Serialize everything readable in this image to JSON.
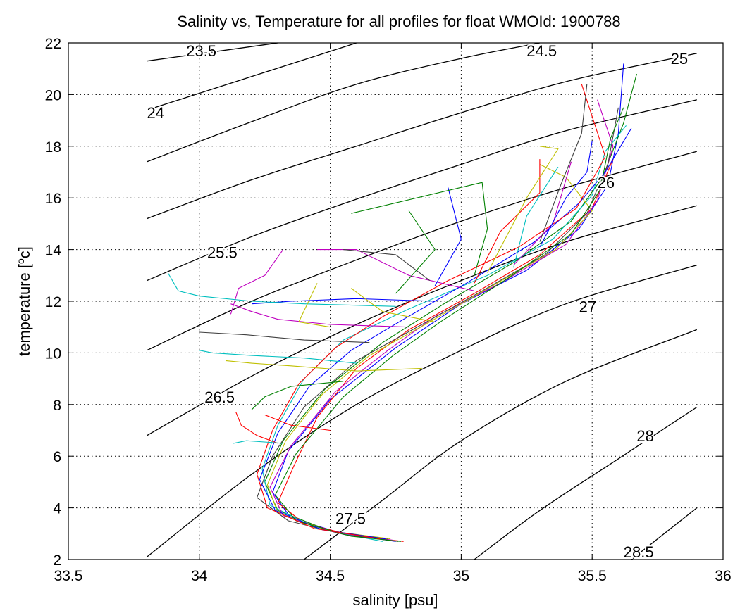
{
  "chart_data": {
    "type": "line",
    "title": "Salinity vs, Temperature for all profiles for float WMOId: 1900788",
    "xlabel": "salinity [psu]",
    "ylabel_main": "temperature [",
    "ylabel_sup": "o",
    "ylabel_end": "c]",
    "xlim": [
      33.5,
      36
    ],
    "ylim": [
      2,
      22
    ],
    "xticks": [
      33.5,
      34,
      34.5,
      35,
      35.5,
      36
    ],
    "xtick_labels": [
      "33.5",
      "34",
      "34.5",
      "35",
      "35.5",
      "36"
    ],
    "yticks": [
      2,
      4,
      6,
      8,
      10,
      12,
      14,
      16,
      18,
      20,
      22
    ],
    "ytick_labels": [
      "2",
      "4",
      "6",
      "8",
      "10",
      "12",
      "14",
      "16",
      "18",
      "20",
      "22"
    ],
    "grid": true,
    "isopycnals": [
      {
        "label": "23.5",
        "points": [
          [
            33.8,
            21.3
          ],
          [
            34.3,
            22.0
          ]
        ],
        "label_at": [
          33.95,
          21.7
        ]
      },
      {
        "label": "24",
        "points": [
          [
            33.8,
            19.4
          ],
          [
            34.6,
            22.0
          ]
        ],
        "label_at": [
          33.8,
          19.3
        ]
      },
      {
        "label": "24.5",
        "points": [
          [
            33.8,
            17.4
          ],
          [
            34.2,
            18.95
          ],
          [
            34.6,
            20.4
          ],
          [
            35.0,
            21.4
          ],
          [
            35.3,
            22.0
          ]
        ],
        "label_at": [
          35.25,
          21.7
        ]
      },
      {
        "label": "25",
        "points": [
          [
            33.8,
            15.2
          ],
          [
            34.2,
            16.7
          ],
          [
            34.6,
            18.0
          ],
          [
            35.0,
            19.3
          ],
          [
            35.4,
            20.5
          ],
          [
            35.9,
            21.6
          ]
        ],
        "label_at": [
          35.8,
          21.4
        ]
      },
      {
        "label": "25.5",
        "points": [
          [
            33.8,
            12.8
          ],
          [
            34.2,
            14.5
          ],
          [
            34.6,
            15.95
          ],
          [
            35.0,
            17.3
          ],
          [
            35.4,
            18.6
          ],
          [
            35.9,
            19.8
          ]
        ],
        "label_at": [
          34.03,
          13.9
        ]
      },
      {
        "label": "26",
        "points": [
          [
            33.8,
            10.1
          ],
          [
            34.2,
            12.0
          ],
          [
            34.6,
            13.6
          ],
          [
            35.0,
            15.1
          ],
          [
            35.4,
            16.4
          ],
          [
            35.9,
            17.8
          ]
        ],
        "label_at": [
          35.52,
          16.6
        ]
      },
      {
        "label": "26.5",
        "points": [
          [
            33.8,
            6.8
          ],
          [
            34.2,
            9.1
          ],
          [
            34.6,
            11.1
          ],
          [
            35.0,
            12.8
          ],
          [
            35.4,
            14.3
          ],
          [
            35.9,
            15.7
          ]
        ],
        "label_at": [
          34.02,
          8.3
        ]
      },
      {
        "label": "27",
        "points": [
          [
            33.8,
            2.1
          ],
          [
            34.2,
            5.3
          ],
          [
            34.6,
            8.0
          ],
          [
            35.0,
            10.1
          ],
          [
            35.4,
            11.9
          ],
          [
            35.9,
            13.4
          ]
        ],
        "label_at": [
          35.45,
          11.8
        ]
      },
      {
        "label": "27.5",
        "points": [
          [
            34.4,
            2.0
          ],
          [
            34.7,
            4.3
          ],
          [
            35.0,
            6.6
          ],
          [
            35.4,
            8.9
          ],
          [
            35.9,
            10.9
          ]
        ],
        "label_at": [
          34.52,
          3.6
        ]
      },
      {
        "label": "28",
        "points": [
          [
            35.05,
            2.0
          ],
          [
            35.3,
            3.9
          ],
          [
            35.6,
            5.9
          ],
          [
            35.9,
            7.9
          ]
        ],
        "label_at": [
          35.67,
          6.8
        ]
      },
      {
        "label": "28.5",
        "points": [
          [
            35.65,
            2.0
          ],
          [
            35.9,
            4.0
          ]
        ],
        "label_at": [
          35.62,
          2.3
        ]
      }
    ],
    "profile_colors": [
      "#0000ff",
      "#008000",
      "#ff0000",
      "#00bfbf",
      "#bf00bf",
      "#bfbf00",
      "#404040"
    ],
    "profiles": [
      [
        [
          34.75,
          2.7
        ],
        [
          34.55,
          3.0
        ],
        [
          34.35,
          3.6
        ],
        [
          34.28,
          4.6
        ],
        [
          34.34,
          6.2
        ],
        [
          34.5,
          8.2
        ],
        [
          34.75,
          10.2
        ],
        [
          35.0,
          11.9
        ],
        [
          35.25,
          13.2
        ],
        [
          35.45,
          14.8
        ],
        [
          35.56,
          16.5
        ],
        [
          35.6,
          18.5
        ],
        [
          35.62,
          21.2
        ]
      ],
      [
        [
          34.72,
          2.8
        ],
        [
          34.5,
          3.1
        ],
        [
          34.3,
          3.9
        ],
        [
          34.25,
          5.0
        ],
        [
          34.32,
          6.6
        ],
        [
          34.48,
          8.6
        ],
        [
          34.7,
          10.4
        ],
        [
          34.95,
          12.0
        ],
        [
          35.2,
          13.5
        ],
        [
          35.42,
          15.1
        ],
        [
          35.54,
          16.8
        ],
        [
          35.62,
          18.9
        ],
        [
          35.67,
          20.8
        ]
      ],
      [
        [
          34.78,
          2.7
        ],
        [
          34.6,
          2.9
        ],
        [
          34.4,
          3.4
        ],
        [
          34.3,
          4.2
        ],
        [
          34.36,
          5.6
        ],
        [
          34.45,
          7.5
        ],
        [
          34.6,
          9.4
        ],
        [
          34.8,
          10.9
        ],
        [
          35.05,
          12.3
        ],
        [
          35.3,
          13.8
        ],
        [
          35.5,
          15.6
        ],
        [
          35.58,
          17.5
        ]
      ],
      [
        [
          34.7,
          2.7
        ],
        [
          34.45,
          3.2
        ],
        [
          34.27,
          4.1
        ],
        [
          34.24,
          5.5
        ],
        [
          34.3,
          7.2
        ],
        [
          34.4,
          9.0
        ],
        [
          34.55,
          10.5
        ],
        [
          34.8,
          11.7
        ],
        [
          35.1,
          13.0
        ],
        [
          35.35,
          14.4
        ],
        [
          35.5,
          16.1
        ],
        [
          35.55,
          17.8
        ],
        [
          35.63,
          18.8
        ]
      ],
      [
        [
          34.74,
          2.75
        ],
        [
          34.52,
          3.05
        ],
        [
          34.32,
          3.7
        ],
        [
          34.27,
          4.8
        ],
        [
          34.35,
          6.4
        ],
        [
          34.52,
          8.5
        ],
        [
          34.72,
          10.1
        ],
        [
          34.9,
          11.4
        ],
        [
          35.15,
          12.7
        ],
        [
          35.4,
          14.2
        ],
        [
          35.52,
          15.9
        ],
        [
          35.58,
          18.0
        ],
        [
          35.52,
          19.8
        ]
      ],
      [
        [
          34.73,
          2.8
        ],
        [
          34.5,
          3.1
        ],
        [
          34.3,
          3.8
        ],
        [
          34.26,
          4.9
        ],
        [
          34.33,
          6.6
        ],
        [
          34.47,
          8.4
        ],
        [
          34.65,
          9.9
        ],
        [
          34.88,
          11.2
        ],
        [
          35.12,
          12.6
        ],
        [
          35.36,
          14.0
        ],
        [
          35.5,
          15.5
        ],
        [
          35.4,
          16.8
        ],
        [
          35.3,
          17.3
        ]
      ],
      [
        [
          34.76,
          2.7
        ],
        [
          34.56,
          2.95
        ],
        [
          34.34,
          3.5
        ],
        [
          34.22,
          4.4
        ],
        [
          34.28,
          6.0
        ],
        [
          34.4,
          7.9
        ],
        [
          34.6,
          9.7
        ],
        [
          34.85,
          11.1
        ],
        [
          35.08,
          12.4
        ],
        [
          35.32,
          13.8
        ],
        [
          35.48,
          15.4
        ],
        [
          35.56,
          17.3
        ],
        [
          35.6,
          19.5
        ]
      ],
      [
        [
          34.71,
          2.8
        ],
        [
          34.47,
          3.15
        ],
        [
          34.29,
          3.9
        ],
        [
          34.23,
          5.1
        ],
        [
          34.3,
          6.9
        ],
        [
          34.42,
          8.7
        ],
        [
          34.58,
          10.1
        ],
        [
          34.78,
          11.3
        ],
        [
          35.02,
          12.7
        ],
        [
          35.28,
          14.3
        ],
        [
          35.45,
          15.8
        ],
        [
          35.55,
          17.0
        ],
        [
          35.65,
          18.7
        ]
      ],
      [
        [
          34.77,
          2.7
        ],
        [
          34.58,
          2.9
        ],
        [
          34.37,
          3.5
        ],
        [
          34.29,
          4.5
        ],
        [
          34.37,
          6.1
        ],
        [
          34.55,
          8.3
        ],
        [
          34.74,
          9.9
        ],
        [
          34.92,
          11.2
        ],
        [
          35.18,
          12.9
        ],
        [
          35.42,
          14.6
        ],
        [
          35.53,
          16.3
        ],
        [
          35.57,
          18.3
        ],
        [
          35.62,
          19.5
        ]
      ],
      [
        [
          34.69,
          2.8
        ],
        [
          34.44,
          3.2
        ],
        [
          34.26,
          4.0
        ],
        [
          34.22,
          5.3
        ],
        [
          34.28,
          7.0
        ],
        [
          34.38,
          8.8
        ],
        [
          34.52,
          10.2
        ],
        [
          34.7,
          11.4
        ],
        [
          34.95,
          12.8
        ],
        [
          35.22,
          14.1
        ],
        [
          35.44,
          15.6
        ],
        [
          35.55,
          17.6
        ],
        [
          35.46,
          20.4
        ]
      ],
      [
        [
          34.6,
          9.6
        ],
        [
          34.4,
          9.8
        ],
        [
          34.2,
          9.9
        ],
        [
          34.05,
          10.0
        ],
        [
          34.0,
          10.1
        ]
      ],
      [
        [
          34.8,
          11.0
        ],
        [
          34.5,
          11.1
        ],
        [
          34.3,
          11.3
        ],
        [
          34.2,
          11.6
        ],
        [
          34.12,
          11.9
        ]
      ],
      [
        [
          34.85,
          9.4
        ],
        [
          34.6,
          9.3
        ],
        [
          34.35,
          9.5
        ],
        [
          34.2,
          9.6
        ],
        [
          34.1,
          9.7
        ]
      ],
      [
        [
          34.65,
          10.4
        ],
        [
          34.4,
          10.5
        ],
        [
          34.18,
          10.7
        ],
        [
          34.0,
          10.8
        ]
      ],
      [
        [
          34.9,
          12.0
        ],
        [
          34.6,
          12.1
        ],
        [
          34.35,
          12.0
        ],
        [
          34.2,
          11.9
        ]
      ],
      [
        [
          34.55,
          8.9
        ],
        [
          34.35,
          8.7
        ],
        [
          34.25,
          8.3
        ],
        [
          34.2,
          7.8
        ]
      ],
      [
        [
          34.5,
          7.0
        ],
        [
          34.35,
          7.2
        ],
        [
          34.25,
          7.6
        ]
      ],
      [
        [
          34.75,
          11.8
        ],
        [
          34.4,
          11.9
        ],
        [
          34.2,
          12.0
        ],
        [
          34.0,
          12.2
        ],
        [
          33.92,
          12.4
        ],
        [
          33.88,
          13.1
        ]
      ],
      [
        [
          35.05,
          12.4
        ],
        [
          34.8,
          13.0
        ],
        [
          34.6,
          14.0
        ],
        [
          34.45,
          14.0
        ]
      ],
      [
        [
          34.9,
          11.2
        ],
        [
          34.7,
          11.6
        ],
        [
          34.58,
          12.5
        ]
      ],
      [
        [
          34.88,
          12.8
        ],
        [
          34.75,
          13.8
        ],
        [
          34.55,
          14.0
        ]
      ],
      [
        [
          34.9,
          12.6
        ],
        [
          35.0,
          14.4
        ],
        [
          34.95,
          16.4
        ]
      ],
      [
        [
          35.05,
          13.0
        ],
        [
          35.1,
          14.8
        ],
        [
          35.08,
          16.6
        ],
        [
          34.58,
          15.4
        ]
      ],
      [
        [
          35.05,
          12.7
        ],
        [
          35.15,
          14.7
        ],
        [
          35.3,
          16.2
        ],
        [
          35.3,
          17.5
        ]
      ],
      [
        [
          35.2,
          13.3
        ],
        [
          35.25,
          15.3
        ],
        [
          35.37,
          17.2
        ]
      ],
      [
        [
          35.2,
          13.4
        ],
        [
          35.35,
          15.0
        ],
        [
          35.42,
          17.4
        ]
      ],
      [
        [
          35.1,
          13.1
        ],
        [
          35.25,
          16.0
        ],
        [
          35.37,
          17.9
        ],
        [
          35.3,
          18.0
        ]
      ],
      [
        [
          35.3,
          14.3
        ],
        [
          35.38,
          16.5
        ],
        [
          35.46,
          18.5
        ],
        [
          35.48,
          20.4
        ]
      ],
      [
        [
          35.3,
          14.1
        ],
        [
          35.4,
          16.0
        ],
        [
          35.48,
          17.0
        ],
        [
          35.5,
          18.2
        ]
      ],
      [
        [
          34.75,
          12.3
        ],
        [
          34.9,
          14.0
        ],
        [
          34.8,
          15.5
        ]
      ],
      [
        [
          34.3,
          6.5
        ],
        [
          34.22,
          6.8
        ],
        [
          34.16,
          7.2
        ],
        [
          34.14,
          7.7
        ]
      ],
      [
        [
          34.32,
          6.5
        ],
        [
          34.18,
          6.6
        ],
        [
          34.13,
          6.5
        ]
      ],
      [
        [
          34.32,
          14.0
        ],
        [
          34.25,
          13.0
        ],
        [
          34.15,
          12.5
        ],
        [
          34.12,
          11.5
        ]
      ],
      [
        [
          34.5,
          11.0
        ],
        [
          34.38,
          11.2
        ],
        [
          34.45,
          12.7
        ]
      ]
    ]
  }
}
